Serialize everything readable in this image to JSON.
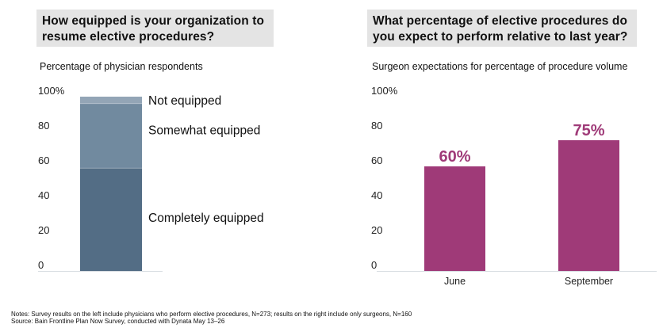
{
  "colors": {
    "title_bg": "#e4e4e4",
    "not_equipped": "#93a5b6",
    "somewhat_equipped": "#718a9f",
    "completely_equipped": "#536d85",
    "procedure_bar": "#9f3a78",
    "value_label": "#9f3a78",
    "axis_line": "#d8dde2"
  },
  "chart_data": [
    {
      "type": "bar",
      "stacked": true,
      "title": "How equipped is your organization to resume elective procedures?",
      "subtitle": "Percentage of physician respondents",
      "ylim": [
        0,
        100
      ],
      "yticks": [
        {
          "value": 0,
          "label": "0"
        },
        {
          "value": 20,
          "label": "20"
        },
        {
          "value": 40,
          "label": "40"
        },
        {
          "value": 60,
          "label": "60"
        },
        {
          "value": 80,
          "label": "80"
        },
        {
          "value": 100,
          "label": "100%"
        }
      ],
      "categories": [
        ""
      ],
      "series": [
        {
          "name": "Completely equipped",
          "values": [
            59
          ],
          "color_key": "completely_equipped"
        },
        {
          "name": "Somewhat equipped",
          "values": [
            37
          ],
          "color_key": "somewhat_equipped"
        },
        {
          "name": "Not equipped",
          "values": [
            4
          ],
          "color_key": "not_equipped"
        }
      ],
      "legend": "inline-right",
      "grid": false
    },
    {
      "type": "bar",
      "title": "What percentage of elective procedures do you expect to perform relative to last year?",
      "subtitle": "Surgeon expectations for percentage of procedure volume",
      "ylim": [
        0,
        100
      ],
      "yticks": [
        {
          "value": 0,
          "label": "0"
        },
        {
          "value": 20,
          "label": "20"
        },
        {
          "value": 40,
          "label": "40"
        },
        {
          "value": 60,
          "label": "60"
        },
        {
          "value": 80,
          "label": "80"
        },
        {
          "value": 100,
          "label": "100%"
        }
      ],
      "categories": [
        "June",
        "September"
      ],
      "values": [
        60,
        75
      ],
      "data_labels": [
        "60%",
        "75%"
      ],
      "grid": false
    }
  ],
  "footer": {
    "notes": "Notes: Survey results on the left include physicians who perform elective procedures, N=273; results on the right include only surgeons, N=160",
    "source": "Source: Bain Frontline Plan Now Survey, conducted with Dynata May 13–26"
  }
}
